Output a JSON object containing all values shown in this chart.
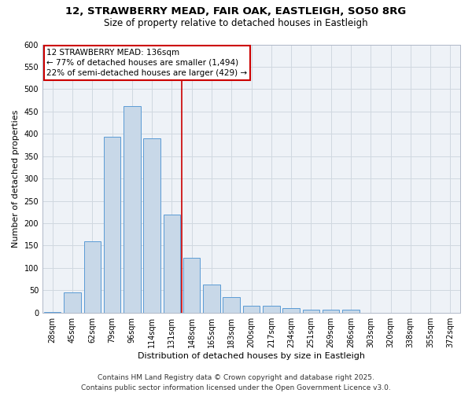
{
  "title_line1": "12, STRAWBERRY MEAD, FAIR OAK, EASTLEIGH, SO50 8RG",
  "title_line2": "Size of property relative to detached houses in Eastleigh",
  "xlabel": "Distribution of detached houses by size in Eastleigh",
  "ylabel": "Number of detached properties",
  "bar_labels": [
    "28sqm",
    "45sqm",
    "62sqm",
    "79sqm",
    "96sqm",
    "114sqm",
    "131sqm",
    "148sqm",
    "165sqm",
    "183sqm",
    "200sqm",
    "217sqm",
    "234sqm",
    "251sqm",
    "269sqm",
    "286sqm",
    "303sqm",
    "320sqm",
    "338sqm",
    "355sqm",
    "372sqm"
  ],
  "bar_values": [
    2,
    46,
    160,
    393,
    462,
    389,
    220,
    122,
    63,
    35,
    15,
    15,
    10,
    6,
    6,
    6,
    0,
    0,
    0,
    0,
    0
  ],
  "bar_color": "#c8d8e8",
  "bar_edge_color": "#5b9bd5",
  "vline_color": "#cc0000",
  "annotation_text": "12 STRAWBERRY MEAD: 136sqm\n← 77% of detached houses are smaller (1,494)\n22% of semi-detached houses are larger (429) →",
  "annotation_box_color": "#ffffff",
  "annotation_box_edge": "#cc0000",
  "ylim": [
    0,
    600
  ],
  "yticks": [
    0,
    50,
    100,
    150,
    200,
    250,
    300,
    350,
    400,
    450,
    500,
    550,
    600
  ],
  "grid_color": "#d0d8e0",
  "bg_color": "#eef2f7",
  "footer": "Contains HM Land Registry data © Crown copyright and database right 2025.\nContains public sector information licensed under the Open Government Licence v3.0.",
  "title_fontsize": 9.5,
  "subtitle_fontsize": 8.5,
  "axis_label_fontsize": 8,
  "tick_fontsize": 7,
  "annotation_fontsize": 7.5,
  "footer_fontsize": 6.5
}
